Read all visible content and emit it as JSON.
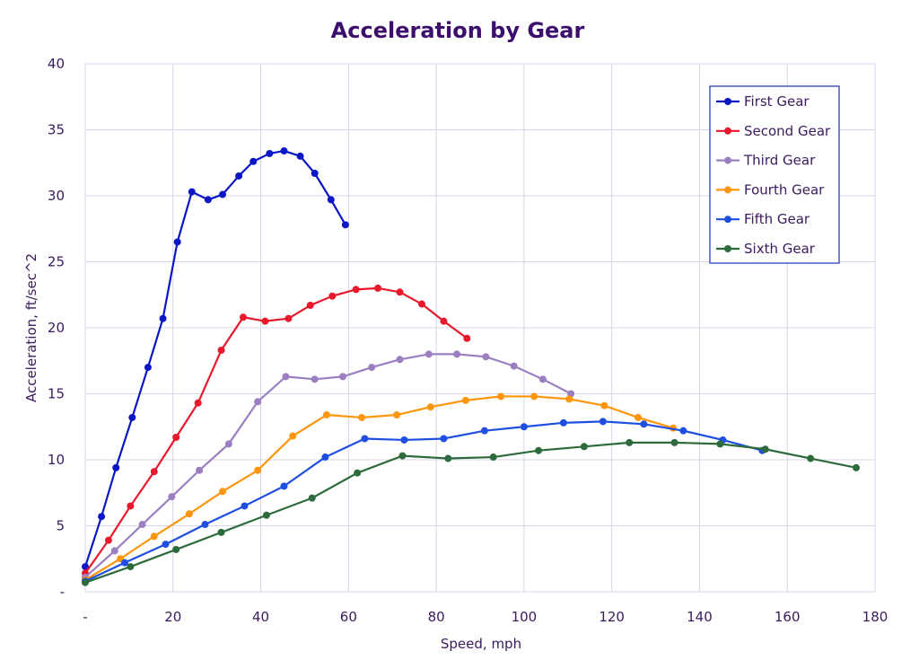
{
  "chart_data": {
    "type": "line",
    "title": "Acceleration by Gear",
    "xlabel": "Speed, mph",
    "ylabel": "Acceleration, ft/sec^2",
    "xlim": [
      0,
      180
    ],
    "ylim": [
      0,
      40
    ],
    "x_ticks": [
      "-",
      "20",
      "40",
      "60",
      "80",
      "100",
      "120",
      "140",
      "160",
      "180"
    ],
    "y_ticks": [
      "-",
      "5",
      "10",
      "15",
      "20",
      "25",
      "30",
      "35",
      "40"
    ],
    "grid": true,
    "legend_position": "top-right",
    "series": [
      {
        "name": "First Gear",
        "color": "#0b16c4",
        "points": [
          [
            0,
            1.9
          ],
          [
            3.7,
            5.7
          ],
          [
            7,
            9.4
          ],
          [
            10.7,
            13.2
          ],
          [
            14.3,
            17
          ],
          [
            17.7,
            20.7
          ],
          [
            21,
            26.5
          ],
          [
            24.3,
            30.3
          ],
          [
            28,
            29.7
          ],
          [
            31.3,
            30.1
          ],
          [
            35,
            31.5
          ],
          [
            38.3,
            32.6
          ],
          [
            42,
            33.2
          ],
          [
            45.3,
            33.4
          ],
          [
            49,
            33
          ],
          [
            52.3,
            31.7
          ],
          [
            56,
            29.7
          ],
          [
            59.3,
            27.8
          ]
        ]
      },
      {
        "name": "Second Gear",
        "color": "#e8192c",
        "points": [
          [
            0,
            1.4
          ],
          [
            5.3,
            3.9
          ],
          [
            10.3,
            6.5
          ],
          [
            15.7,
            9.1
          ],
          [
            20.7,
            11.7
          ],
          [
            25.7,
            14.3
          ],
          [
            31,
            18.3
          ],
          [
            36,
            20.8
          ],
          [
            41,
            20.5
          ],
          [
            46.3,
            20.7
          ],
          [
            51.3,
            21.7
          ],
          [
            56.3,
            22.4
          ],
          [
            61.7,
            22.9
          ],
          [
            66.7,
            23
          ],
          [
            71.7,
            22.7
          ],
          [
            76.7,
            21.8
          ],
          [
            81.7,
            20.5
          ],
          [
            87,
            19.2
          ]
        ]
      },
      {
        "name": "Third Gear",
        "color": "#9b7fc0",
        "points": [
          [
            0,
            1.1
          ],
          [
            6.7,
            3.1
          ],
          [
            13,
            5.1
          ],
          [
            19.7,
            7.2
          ],
          [
            26,
            9.2
          ],
          [
            32.7,
            11.2
          ],
          [
            39.3,
            14.4
          ],
          [
            45.7,
            16.3
          ],
          [
            52.3,
            16.1
          ],
          [
            58.7,
            16.3
          ],
          [
            65.3,
            17
          ],
          [
            71.7,
            17.6
          ],
          [
            78.3,
            18
          ],
          [
            84.7,
            18
          ],
          [
            91.3,
            17.8
          ],
          [
            97.7,
            17.1
          ],
          [
            104.3,
            16.1
          ],
          [
            110.7,
            15
          ]
        ]
      },
      {
        "name": "Fourth Gear",
        "color": "#ff950a",
        "points": [
          [
            0,
            0.9
          ],
          [
            8,
            2.5
          ],
          [
            15.7,
            4.2
          ],
          [
            23.7,
            5.9
          ],
          [
            31.3,
            7.6
          ],
          [
            39.3,
            9.2
          ],
          [
            47.3,
            11.8
          ],
          [
            55,
            13.4
          ],
          [
            63,
            13.2
          ],
          [
            71,
            13.4
          ],
          [
            78.7,
            14
          ],
          [
            86.7,
            14.5
          ],
          [
            94.7,
            14.8
          ],
          [
            102.3,
            14.8
          ],
          [
            110.3,
            14.6
          ],
          [
            118.3,
            14.1
          ],
          [
            126,
            13.2
          ],
          [
            134,
            12.4
          ]
        ]
      },
      {
        "name": "Fifth Gear",
        "color": "#1f4fe0",
        "points": [
          [
            0,
            0.8
          ],
          [
            9,
            2.2
          ],
          [
            18.3,
            3.6
          ],
          [
            27.3,
            5.1
          ],
          [
            36.3,
            6.5
          ],
          [
            45.3,
            8
          ],
          [
            54.7,
            10.2
          ],
          [
            63.7,
            11.6
          ],
          [
            72.7,
            11.5
          ],
          [
            81.7,
            11.6
          ],
          [
            91,
            12.2
          ],
          [
            100,
            12.5
          ],
          [
            109,
            12.8
          ],
          [
            118,
            12.9
          ],
          [
            127.3,
            12.7
          ],
          [
            136.3,
            12.2
          ],
          [
            145.3,
            11.5
          ],
          [
            154.3,
            10.7
          ]
        ]
      },
      {
        "name": "Sixth Gear",
        "color": "#2e6b3c",
        "points": [
          [
            0,
            0.7
          ],
          [
            10.3,
            1.9
          ],
          [
            20.7,
            3.2
          ],
          [
            31,
            4.5
          ],
          [
            41.3,
            5.8
          ],
          [
            51.7,
            7.1
          ],
          [
            62,
            9
          ],
          [
            72.3,
            10.3
          ],
          [
            82.7,
            10.1
          ],
          [
            93,
            10.2
          ],
          [
            103.3,
            10.7
          ],
          [
            113.7,
            11
          ],
          [
            124,
            11.3
          ],
          [
            134.3,
            11.3
          ],
          [
            144.7,
            11.2
          ],
          [
            155,
            10.8
          ],
          [
            165.3,
            10.1
          ],
          [
            175.7,
            9.4
          ]
        ]
      }
    ]
  }
}
